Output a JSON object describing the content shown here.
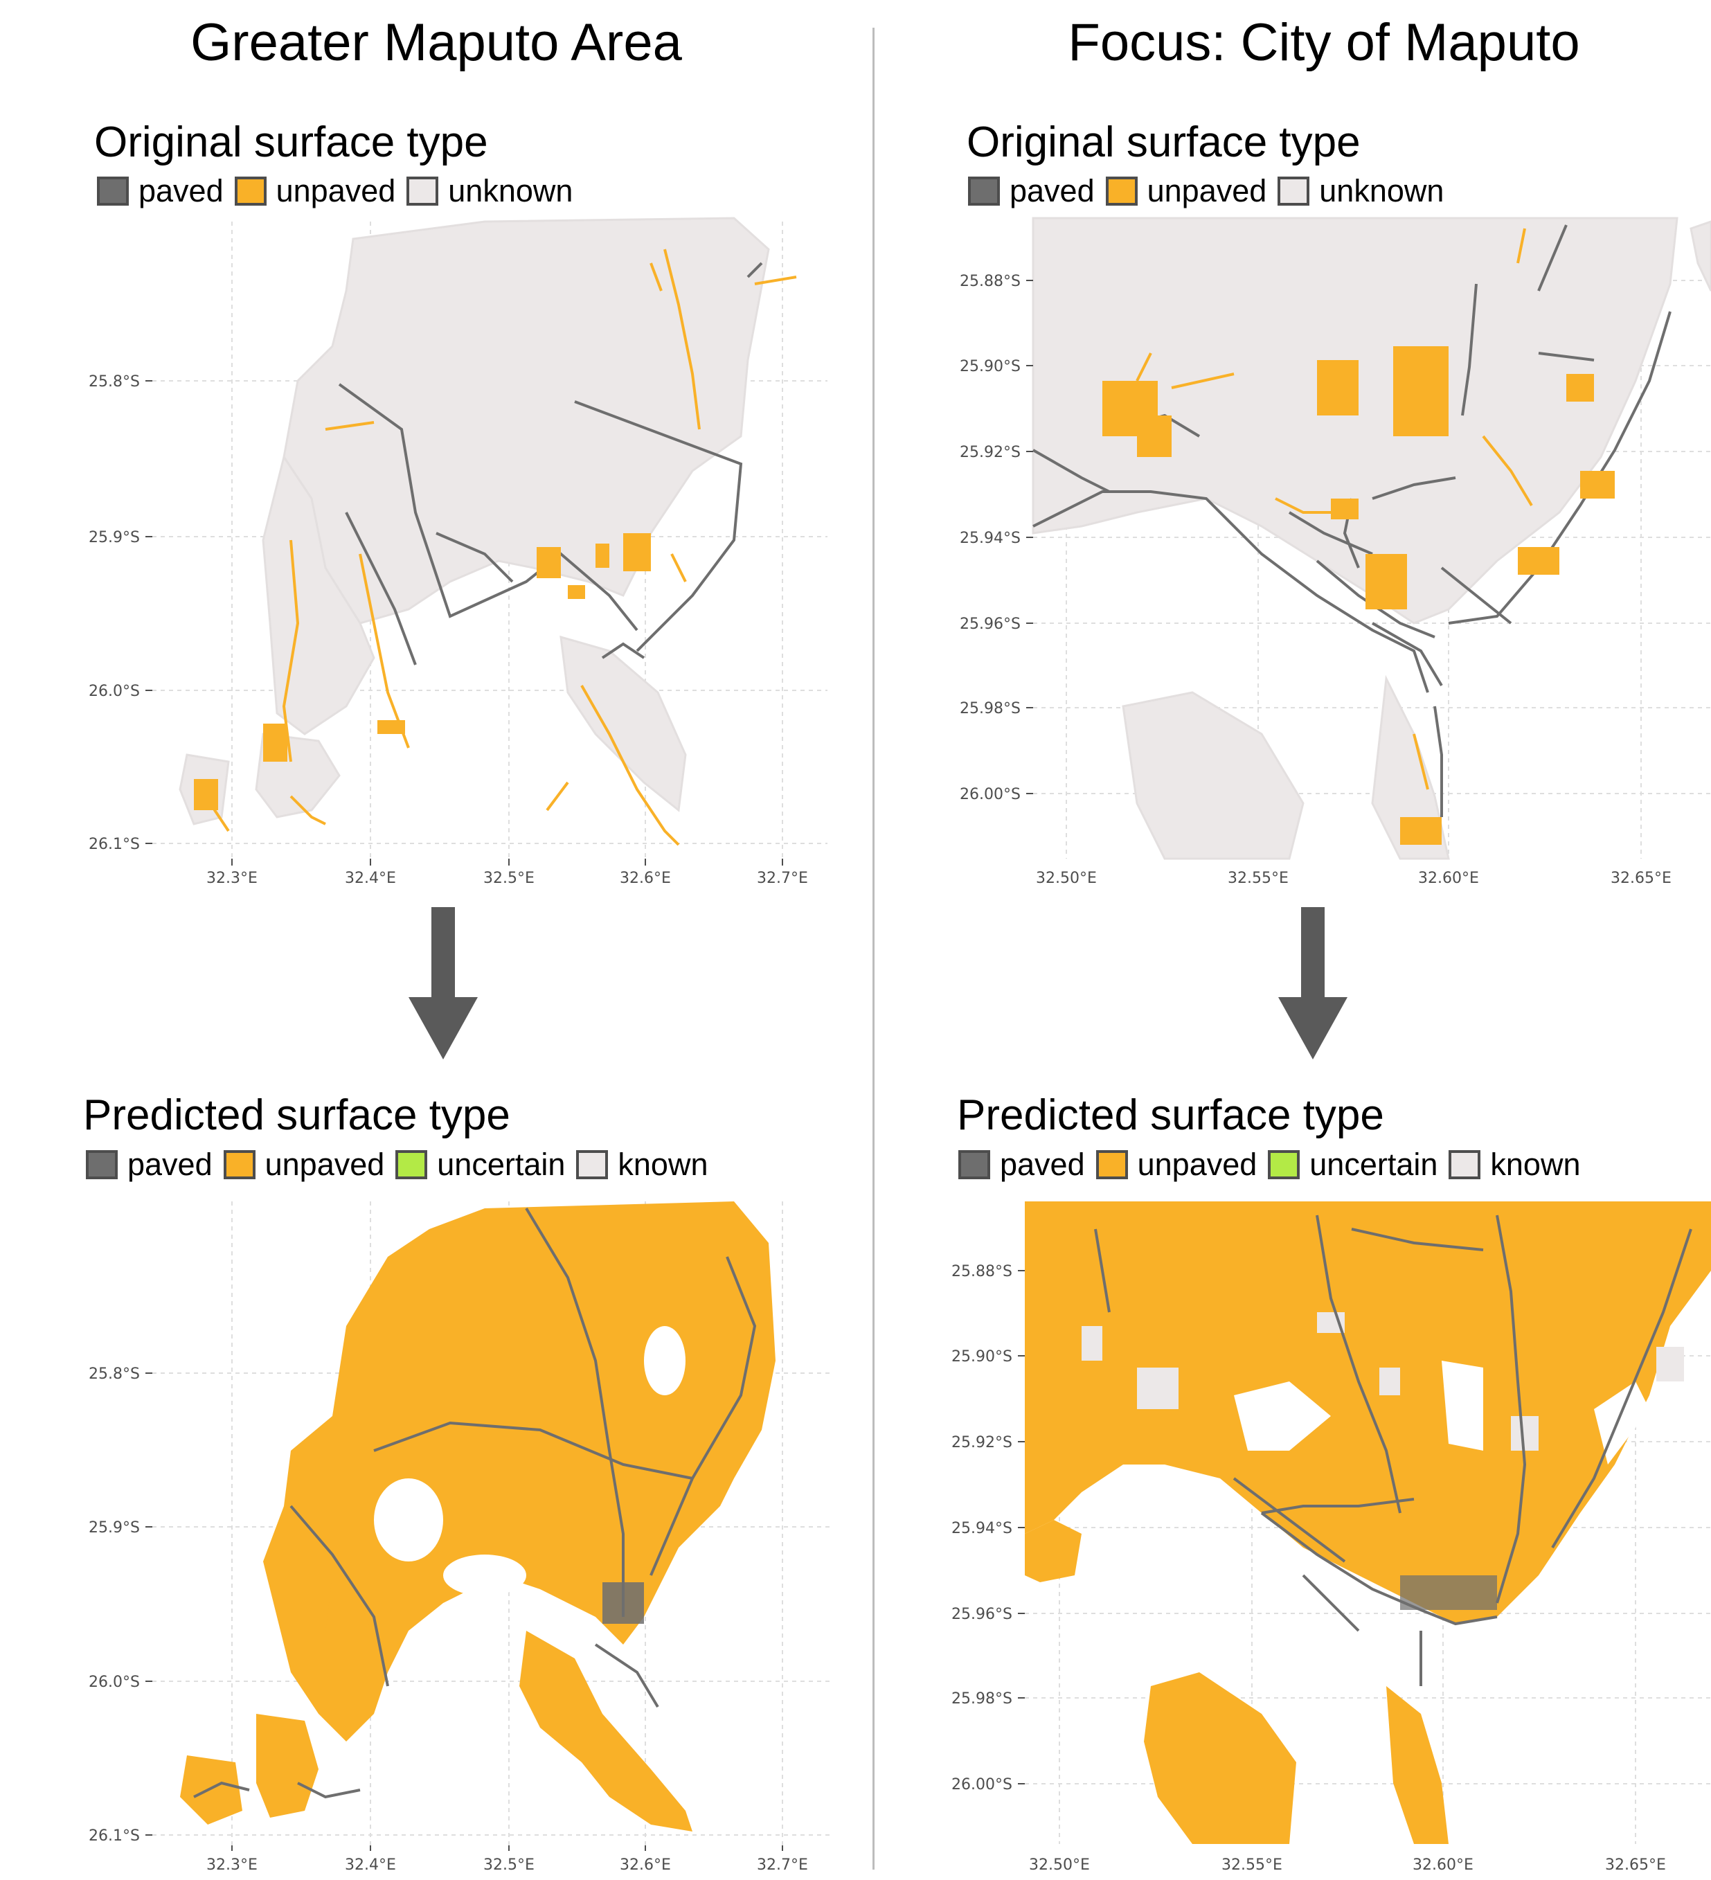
{
  "titles": {
    "left": "Greater Maputo Area",
    "right": "Focus: City of Maputo"
  },
  "colors": {
    "paved": "#6e6e6e",
    "unpaved": "#f9b128",
    "uncertain": "#b3ea46",
    "unknown": "#ece8e8",
    "grid": "#dedede",
    "arrow": "#5a5a5a"
  },
  "panels": {
    "orig_left": {
      "title": "Original surface type",
      "legend": [
        {
          "label": "paved",
          "color": "#6e6e6e"
        },
        {
          "label": "unpaved",
          "color": "#f9b128"
        },
        {
          "label": "unknown",
          "color": "#ece8e8"
        }
      ],
      "x_ticks": [
        "32.3°E",
        "32.4°E",
        "32.5°E",
        "32.6°E",
        "32.7°E"
      ],
      "y_ticks": [
        "25.8°S",
        "25.9°S",
        "26.0°S",
        "26.1°S"
      ]
    },
    "orig_right": {
      "title": "Original surface type",
      "legend": [
        {
          "label": "paved",
          "color": "#6e6e6e"
        },
        {
          "label": "unpaved",
          "color": "#f9b128"
        },
        {
          "label": "unknown",
          "color": "#ece8e8"
        }
      ],
      "x_ticks": [
        "32.50°E",
        "32.55°E",
        "32.60°E",
        "32.65°E"
      ],
      "y_ticks": [
        "25.88°S",
        "25.90°S",
        "25.92°S",
        "25.94°S",
        "25.96°S",
        "25.98°S",
        "26.00°S"
      ]
    },
    "pred_left": {
      "title": "Predicted surface type",
      "legend": [
        {
          "label": "paved",
          "color": "#6e6e6e"
        },
        {
          "label": "unpaved",
          "color": "#f9b128"
        },
        {
          "label": "uncertain",
          "color": "#b3ea46"
        },
        {
          "label": "known",
          "color": "#ece8e8"
        }
      ],
      "x_ticks": [
        "32.3°E",
        "32.4°E",
        "32.5°E",
        "32.6°E",
        "32.7°E"
      ],
      "y_ticks": [
        "25.8°S",
        "25.9°S",
        "26.0°S",
        "26.1°S"
      ]
    },
    "pred_right": {
      "title": "Predicted surface type",
      "legend": [
        {
          "label": "paved",
          "color": "#6e6e6e"
        },
        {
          "label": "unpaved",
          "color": "#f9b128"
        },
        {
          "label": "uncertain",
          "color": "#b3ea46"
        },
        {
          "label": "known",
          "color": "#ece8e8"
        }
      ],
      "x_ticks": [
        "32.50°E",
        "32.55°E",
        "32.60°E",
        "32.65°E"
      ],
      "y_ticks": [
        "25.88°S",
        "25.90°S",
        "25.92°S",
        "25.94°S",
        "25.96°S",
        "25.98°S",
        "26.00°S"
      ]
    }
  }
}
